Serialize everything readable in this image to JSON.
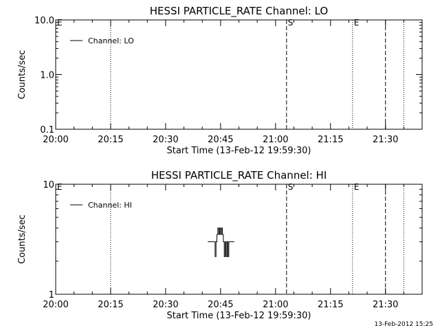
{
  "chart_data": [
    {
      "type": "line",
      "title": "HESSI PARTICLE_RATE Channel: LO",
      "xlabel": "Start Time (13-Feb-12 19:59:30)",
      "ylabel": "Counts/sec",
      "yscale": "log",
      "ylim": [
        0.1,
        10.0
      ],
      "yticks": [
        0.1,
        1.0,
        10.0
      ],
      "ytick_labels": [
        "0.1",
        "1.0",
        "10.0"
      ],
      "xlim_minutes": [
        0,
        100
      ],
      "xticks": [
        "20:00",
        "20:15",
        "20:30",
        "20:45",
        "21:00",
        "21:15",
        "21:30"
      ],
      "legend": {
        "label": "Channel: LO",
        "placement": "top-left"
      },
      "series": [
        {
          "name": "Channel: LO",
          "x": [],
          "values": []
        }
      ],
      "markers": [
        {
          "time": "20:00",
          "style": "dotted",
          "label": "E"
        },
        {
          "time": "20:15",
          "style": "dotted",
          "label": ""
        },
        {
          "time": "21:03",
          "style": "dashed",
          "label": "S"
        },
        {
          "time": "21:21",
          "style": "dotted",
          "label": "E"
        },
        {
          "time": "21:30",
          "style": "dashed",
          "label": ""
        },
        {
          "time": "21:35",
          "style": "dotted",
          "label": ""
        }
      ]
    },
    {
      "type": "line",
      "title": "HESSI PARTICLE_RATE Channel: HI",
      "xlabel": "Start Time (13-Feb-12 19:59:30)",
      "ylabel": "Counts/sec",
      "yscale": "log",
      "ylim": [
        1,
        10
      ],
      "yticks": [
        1,
        10
      ],
      "ytick_labels": [
        "1",
        "10"
      ],
      "xlim_minutes": [
        0,
        100
      ],
      "xticks": [
        "20:00",
        "20:15",
        "20:30",
        "20:45",
        "21:00",
        "21:15",
        "21:30"
      ],
      "legend": {
        "label": "Channel: HI",
        "placement": "top-left"
      },
      "series": [
        {
          "name": "Channel: HI",
          "x": [
            "20:41:30",
            "20:43:30",
            "20:43:30",
            "20:43:45",
            "20:43:45",
            "20:44:00",
            "20:44:00",
            "20:44:15",
            "20:44:15",
            "20:44:30",
            "20:44:30",
            "20:44:45",
            "20:44:45",
            "20:45:00",
            "20:45:00",
            "20:45:15",
            "20:45:15",
            "20:45:30",
            "20:45:30",
            "20:45:45",
            "20:45:45",
            "20:46:00",
            "20:46:00",
            "20:46:15",
            "20:46:15",
            "20:46:30",
            "20:46:30",
            "20:46:45",
            "20:46:45",
            "20:47:00",
            "20:47:00",
            "20:47:15",
            "20:47:15",
            "20:47:30",
            "20:47:30",
            "20:48:45"
          ],
          "values": [
            3,
            3,
            2.2,
            2.2,
            3,
            3,
            3.5,
            3.5,
            4,
            4,
            3.5,
            3.5,
            4,
            4,
            3.5,
            3.5,
            4,
            4,
            3.5,
            3.5,
            3,
            3,
            2.2,
            2.2,
            3,
            3,
            2.2,
            2.2,
            3,
            3,
            2.2,
            2.2,
            3,
            3,
            3,
            3
          ]
        }
      ],
      "markers": [
        {
          "time": "20:00",
          "style": "dotted",
          "label": "E"
        },
        {
          "time": "20:15",
          "style": "dotted",
          "label": ""
        },
        {
          "time": "21:03",
          "style": "dashed",
          "label": "S"
        },
        {
          "time": "21:21",
          "style": "dotted",
          "label": "E"
        },
        {
          "time": "21:30",
          "style": "dashed",
          "label": ""
        },
        {
          "time": "21:35",
          "style": "dotted",
          "label": ""
        }
      ]
    }
  ],
  "footer": {
    "timestamp": "13-Feb-2012 15:25"
  }
}
